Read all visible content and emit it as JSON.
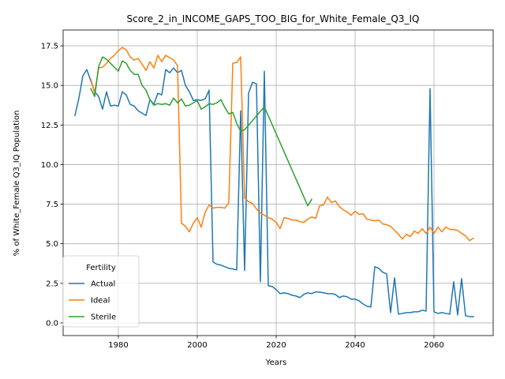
{
  "chart_data": {
    "type": "line",
    "title": "Score_2_in_INCOME_GAPS_TOO_BIG_for_White_Female_Q3_IQ",
    "xlabel": "Years",
    "ylabel": "% of White_Female Q3_IQ Population",
    "xlim": [
      1966,
      2075
    ],
    "ylim": [
      -0.8,
      18.5
    ],
    "xticks": [
      1980,
      2000,
      2020,
      2040,
      2060
    ],
    "yticks": [
      0.0,
      2.5,
      5.0,
      7.5,
      10.0,
      12.5,
      15.0,
      17.5
    ],
    "ytick_labels": [
      "0.0",
      "2.5",
      "5.0",
      "7.5",
      "10.0",
      "12.5",
      "15.0",
      "17.5"
    ],
    "grid": true,
    "legend": {
      "title": "Fertility",
      "position": "lower-left"
    },
    "series": [
      {
        "name": "Actual",
        "color": "#1f77b4",
        "points": [
          [
            1969,
            13.1
          ],
          [
            1970,
            14.2
          ],
          [
            1971,
            15.6
          ],
          [
            1972,
            16.0
          ],
          [
            1973,
            15.3
          ],
          [
            1974,
            14.6
          ],
          [
            1975,
            14.3
          ],
          [
            1976,
            13.5
          ],
          [
            1977,
            14.6
          ],
          [
            1978,
            13.7
          ],
          [
            1979,
            13.75
          ],
          [
            1980,
            13.7
          ],
          [
            1981,
            14.6
          ],
          [
            1982,
            14.4
          ],
          [
            1983,
            13.8
          ],
          [
            1984,
            13.7
          ],
          [
            1985,
            13.4
          ],
          [
            1986,
            13.25
          ],
          [
            1987,
            13.1
          ],
          [
            1988,
            14.1
          ],
          [
            1989,
            13.8
          ],
          [
            1990,
            14.5
          ],
          [
            1991,
            14.4
          ],
          [
            1992,
            16.0
          ],
          [
            1993,
            15.8
          ],
          [
            1994,
            16.1
          ],
          [
            1995,
            15.8
          ],
          [
            1996,
            15.95
          ],
          [
            1997,
            15.0
          ],
          [
            1998,
            14.6
          ],
          [
            1999,
            14.05
          ],
          [
            2000,
            14.1
          ],
          [
            2001,
            14.05
          ],
          [
            2002,
            14.15
          ],
          [
            2003,
            14.7
          ],
          [
            2004,
            3.85
          ],
          [
            2005,
            3.7
          ],
          [
            2006,
            3.65
          ],
          [
            2007,
            3.55
          ],
          [
            2008,
            3.45
          ],
          [
            2009,
            3.4
          ],
          [
            2010,
            3.35
          ],
          [
            2011,
            13.4
          ],
          [
            2012,
            3.3
          ],
          [
            2013,
            14.5
          ],
          [
            2014,
            15.2
          ],
          [
            2015,
            15.1
          ],
          [
            2016,
            2.6
          ],
          [
            2017,
            15.9
          ],
          [
            2018,
            2.35
          ],
          [
            2019,
            2.3
          ],
          [
            2020,
            2.1
          ],
          [
            2021,
            1.85
          ],
          [
            2022,
            1.9
          ],
          [
            2023,
            1.85
          ],
          [
            2024,
            1.75
          ],
          [
            2025,
            1.7
          ],
          [
            2026,
            1.6
          ],
          [
            2027,
            1.8
          ],
          [
            2028,
            1.9
          ],
          [
            2029,
            1.85
          ],
          [
            2030,
            1.95
          ],
          [
            2031,
            1.95
          ],
          [
            2032,
            1.9
          ],
          [
            2033,
            1.85
          ],
          [
            2034,
            1.85
          ],
          [
            2035,
            1.8
          ],
          [
            2036,
            1.6
          ],
          [
            2037,
            1.7
          ],
          [
            2038,
            1.65
          ],
          [
            2039,
            1.5
          ],
          [
            2040,
            1.5
          ],
          [
            2041,
            1.4
          ],
          [
            2042,
            1.2
          ],
          [
            2043,
            1.05
          ],
          [
            2044,
            1.0
          ],
          [
            2045,
            3.55
          ],
          [
            2046,
            3.45
          ],
          [
            2047,
            3.2
          ],
          [
            2048,
            3.1
          ],
          [
            2049,
            0.65
          ],
          [
            2050,
            2.85
          ],
          [
            2051,
            0.55
          ],
          [
            2052,
            0.6
          ],
          [
            2053,
            0.65
          ],
          [
            2054,
            0.65
          ],
          [
            2055,
            0.7
          ],
          [
            2056,
            0.7
          ],
          [
            2057,
            0.8
          ],
          [
            2058,
            0.75
          ],
          [
            2059,
            14.8
          ],
          [
            2060,
            0.7
          ],
          [
            2061,
            0.6
          ],
          [
            2062,
            0.65
          ],
          [
            2063,
            0.6
          ],
          [
            2064,
            0.55
          ],
          [
            2065,
            2.6
          ],
          [
            2066,
            0.5
          ],
          [
            2067,
            2.8
          ],
          [
            2068,
            0.45
          ],
          [
            2069,
            0.4
          ],
          [
            2070,
            0.4
          ]
        ]
      },
      {
        "name": "Ideal",
        "color": "#ff7f0e",
        "points": [
          [
            1973,
            15.4
          ],
          [
            1974,
            14.5
          ],
          [
            1975,
            16.1
          ],
          [
            1976,
            16.15
          ],
          [
            1977,
            16.4
          ],
          [
            1978,
            16.7
          ],
          [
            1979,
            16.9
          ],
          [
            1980,
            17.2
          ],
          [
            1981,
            17.4
          ],
          [
            1982,
            17.25
          ],
          [
            1983,
            16.8
          ],
          [
            1984,
            16.6
          ],
          [
            1985,
            16.7
          ],
          [
            1986,
            16.35
          ],
          [
            1987,
            15.95
          ],
          [
            1988,
            16.5
          ],
          [
            1989,
            16.1
          ],
          [
            1990,
            16.9
          ],
          [
            1991,
            16.5
          ],
          [
            1992,
            16.9
          ],
          [
            1993,
            16.75
          ],
          [
            1994,
            16.6
          ],
          [
            1995,
            16.25
          ],
          [
            1996,
            6.3
          ],
          [
            1997,
            6.1
          ],
          [
            1998,
            5.75
          ],
          [
            1999,
            6.3
          ],
          [
            2000,
            6.65
          ],
          [
            2001,
            6.05
          ],
          [
            2002,
            7.0
          ],
          [
            2003,
            7.45
          ],
          [
            2004,
            7.25
          ],
          [
            2005,
            7.3
          ],
          [
            2006,
            7.3
          ],
          [
            2007,
            7.25
          ],
          [
            2008,
            7.6
          ],
          [
            2009,
            16.4
          ],
          [
            2010,
            16.45
          ],
          [
            2011,
            16.8
          ],
          [
            2012,
            7.9
          ],
          [
            2013,
            7.65
          ],
          [
            2014,
            7.55
          ],
          [
            2015,
            7.2
          ],
          [
            2016,
            6.95
          ],
          [
            2017,
            6.8
          ],
          [
            2018,
            6.65
          ],
          [
            2019,
            6.55
          ],
          [
            2020,
            6.35
          ],
          [
            2021,
            5.95
          ],
          [
            2022,
            6.65
          ],
          [
            2023,
            6.6
          ],
          [
            2024,
            6.5
          ],
          [
            2025,
            6.5
          ],
          [
            2026,
            6.4
          ],
          [
            2027,
            6.35
          ],
          [
            2028,
            6.55
          ],
          [
            2029,
            6.7
          ],
          [
            2030,
            6.6
          ],
          [
            2031,
            7.4
          ],
          [
            2032,
            7.45
          ],
          [
            2033,
            7.95
          ],
          [
            2034,
            7.6
          ],
          [
            2035,
            7.7
          ],
          [
            2036,
            7.35
          ],
          [
            2037,
            7.15
          ],
          [
            2038,
            7.0
          ],
          [
            2039,
            6.8
          ],
          [
            2040,
            7.05
          ],
          [
            2041,
            6.85
          ],
          [
            2042,
            6.9
          ],
          [
            2043,
            6.55
          ],
          [
            2044,
            6.5
          ],
          [
            2045,
            6.45
          ],
          [
            2046,
            6.5
          ],
          [
            2047,
            6.25
          ],
          [
            2048,
            6.2
          ],
          [
            2049,
            6.1
          ],
          [
            2050,
            5.85
          ],
          [
            2051,
            5.6
          ],
          [
            2052,
            5.3
          ],
          [
            2053,
            5.6
          ],
          [
            2054,
            5.45
          ],
          [
            2055,
            5.8
          ],
          [
            2056,
            5.65
          ],
          [
            2057,
            5.95
          ],
          [
            2058,
            5.65
          ],
          [
            2059,
            6.05
          ],
          [
            2060,
            5.65
          ],
          [
            2061,
            6.05
          ],
          [
            2062,
            5.75
          ],
          [
            2063,
            6.05
          ],
          [
            2064,
            5.9
          ],
          [
            2065,
            5.9
          ],
          [
            2066,
            5.85
          ],
          [
            2067,
            5.65
          ],
          [
            2068,
            5.5
          ],
          [
            2069,
            5.2
          ],
          [
            2070,
            5.35
          ]
        ]
      },
      {
        "name": "Sterile",
        "color": "#2ca02c",
        "points": [
          [
            1973,
            14.8
          ],
          [
            1974,
            14.3
          ],
          [
            1975,
            16.2
          ],
          [
            1976,
            16.8
          ],
          [
            1977,
            16.65
          ],
          [
            1978,
            16.4
          ],
          [
            1979,
            16.15
          ],
          [
            1980,
            15.9
          ],
          [
            1981,
            16.55
          ],
          [
            1982,
            16.4
          ],
          [
            1983,
            15.95
          ],
          [
            1984,
            15.7
          ],
          [
            1985,
            15.7
          ],
          [
            1986,
            15.0
          ],
          [
            1987,
            14.7
          ],
          [
            1988,
            14.1
          ],
          [
            1989,
            13.75
          ],
          [
            1990,
            13.85
          ],
          [
            1991,
            13.8
          ],
          [
            1992,
            13.85
          ],
          [
            1993,
            13.75
          ],
          [
            1994,
            14.2
          ],
          [
            1995,
            13.9
          ],
          [
            1996,
            14.15
          ],
          [
            1997,
            13.7
          ],
          [
            1998,
            13.75
          ],
          [
            1999,
            13.9
          ],
          [
            2000,
            14.05
          ],
          [
            2001,
            13.5
          ],
          [
            2002,
            13.65
          ],
          [
            2003,
            13.85
          ],
          [
            2004,
            13.8
          ],
          [
            2005,
            13.9
          ],
          [
            2006,
            14.1
          ],
          [
            2007,
            13.6
          ],
          [
            2008,
            13.2
          ],
          [
            2009,
            13.3
          ],
          [
            2010,
            12.6
          ],
          [
            2011,
            12.1
          ],
          [
            2012,
            12.2
          ],
          [
            2017,
            13.65
          ],
          [
            2028,
            7.4
          ],
          [
            2029,
            7.8
          ]
        ]
      }
    ]
  }
}
